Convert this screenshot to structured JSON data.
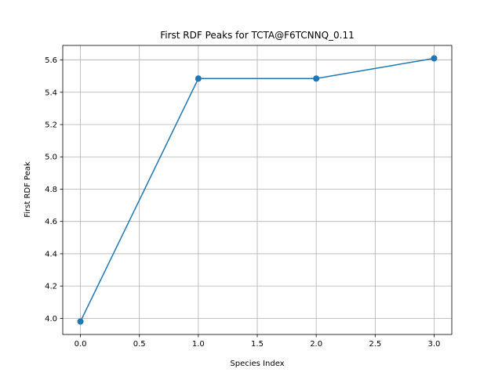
{
  "chart_data": {
    "type": "line",
    "title": "First RDF Peaks for TCTA@F6TCNNQ_0.11",
    "xlabel": "Species Index",
    "ylabel": "First RDF Peak",
    "x": [
      0,
      1,
      2,
      3
    ],
    "series": [
      {
        "values": [
          3.98,
          5.485,
          5.485,
          5.61
        ],
        "color": "#1f77b4",
        "marker": "circle"
      }
    ],
    "xlim": [
      -0.15,
      3.15
    ],
    "ylim": [
      3.9,
      5.69
    ],
    "xticks": [
      "0.0",
      "0.5",
      "1.0",
      "1.5",
      "2.0",
      "2.5",
      "3.0"
    ],
    "yticks": [
      "4.0",
      "4.2",
      "4.4",
      "4.6",
      "4.8",
      "5.0",
      "5.2",
      "5.4",
      "5.6"
    ],
    "grid": true
  }
}
